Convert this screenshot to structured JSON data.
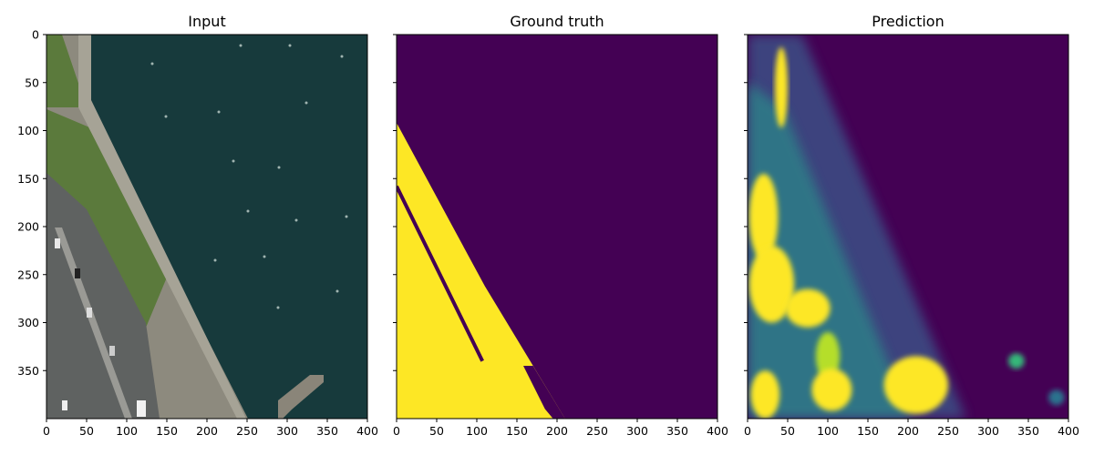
{
  "chart_data": [
    {
      "type": "image",
      "title": "Input",
      "content": "aerial photo: water, waterfront promenade, road with cars, pier",
      "xlim": [
        0,
        400
      ],
      "ylim": [
        400,
        0
      ],
      "xticks": [
        0,
        50,
        100,
        150,
        200,
        250,
        300,
        350,
        400
      ],
      "yticks": [
        0,
        50,
        100,
        150,
        200,
        250,
        300,
        350
      ],
      "grid": false
    },
    {
      "type": "heatmap",
      "title": "Ground truth",
      "colormap": "viridis",
      "binary": true,
      "xlim": [
        0,
        400
      ],
      "ylim": [
        400,
        0
      ],
      "xticks": [
        0,
        50,
        100,
        150,
        200,
        250,
        300,
        350,
        400
      ],
      "yticks": [
        0,
        50,
        100,
        150,
        200,
        250,
        300,
        350
      ],
      "mask_region": [
        [
          0,
          92
        ],
        [
          110,
          262
        ],
        [
          210,
          400
        ],
        [
          0,
          400
        ]
      ],
      "gap_line": [
        [
          0,
          158
        ],
        [
          107,
          340
        ]
      ],
      "pier_notch": [
        [
          158,
          345
        ],
        [
          170,
          345
        ],
        [
          210,
          400
        ],
        [
          195,
          400
        ],
        [
          185,
          390
        ]
      ],
      "grid": false
    },
    {
      "type": "heatmap",
      "title": "Prediction",
      "colormap": "viridis",
      "xlim": [
        0,
        400
      ],
      "ylim": [
        400,
        0
      ],
      "xticks": [
        0,
        50,
        100,
        150,
        200,
        250,
        300,
        350,
        400
      ],
      "yticks": [
        0,
        50,
        100,
        150,
        200,
        250,
        300,
        350
      ],
      "hotspots": [
        {
          "x": 42,
          "y": 55,
          "rx": 8,
          "ry": 42,
          "v": 0.95
        },
        {
          "x": 20,
          "y": 190,
          "rx": 18,
          "ry": 45,
          "v": 0.9
        },
        {
          "x": 30,
          "y": 260,
          "rx": 28,
          "ry": 40,
          "v": 0.95
        },
        {
          "x": 75,
          "y": 285,
          "rx": 28,
          "ry": 20,
          "v": 0.85
        },
        {
          "x": 100,
          "y": 335,
          "rx": 15,
          "ry": 25,
          "v": 0.8
        },
        {
          "x": 22,
          "y": 375,
          "rx": 18,
          "ry": 25,
          "v": 0.95
        },
        {
          "x": 105,
          "y": 370,
          "rx": 25,
          "ry": 22,
          "v": 0.9
        },
        {
          "x": 210,
          "y": 365,
          "rx": 40,
          "ry": 30,
          "v": 1.0
        },
        {
          "x": 335,
          "y": 340,
          "rx": 10,
          "ry": 8,
          "v": 0.45
        },
        {
          "x": 385,
          "y": 378,
          "rx": 10,
          "ry": 8,
          "v": 0.35
        }
      ],
      "grid": false
    }
  ],
  "colors": {
    "viridis_low": "#440154",
    "viridis_mid": "#21918c",
    "viridis_high": "#fde725",
    "water": "#173a3c",
    "pavement": "#8d8a7e",
    "grass": "#5b7a3c"
  }
}
